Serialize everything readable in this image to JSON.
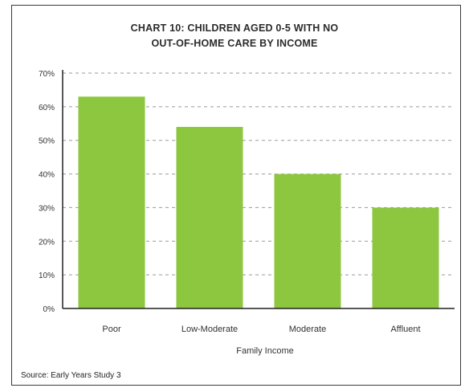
{
  "chart_data": {
    "type": "bar",
    "title_lines": [
      "CHART 10: CHILDREN AGED 0-5 WITH NO",
      "OUT-OF-HOME CARE BY INCOME"
    ],
    "xlabel": "Family Income",
    "ylabel": "",
    "categories": [
      "Poor",
      "Low-Moderate",
      "Moderate",
      "Affluent"
    ],
    "values": [
      63,
      54,
      40,
      30
    ],
    "ylim": [
      0,
      70
    ],
    "yticks": [
      0,
      10,
      20,
      30,
      40,
      50,
      60,
      70
    ],
    "ytick_labels": [
      "0%",
      "10%",
      "20%",
      "30%",
      "40%",
      "50%",
      "60%",
      "70%"
    ],
    "grid": "horizontal dashed",
    "legend": "none",
    "bar_color": "#8dc63f",
    "source": "Source: Early Years Study 3"
  }
}
